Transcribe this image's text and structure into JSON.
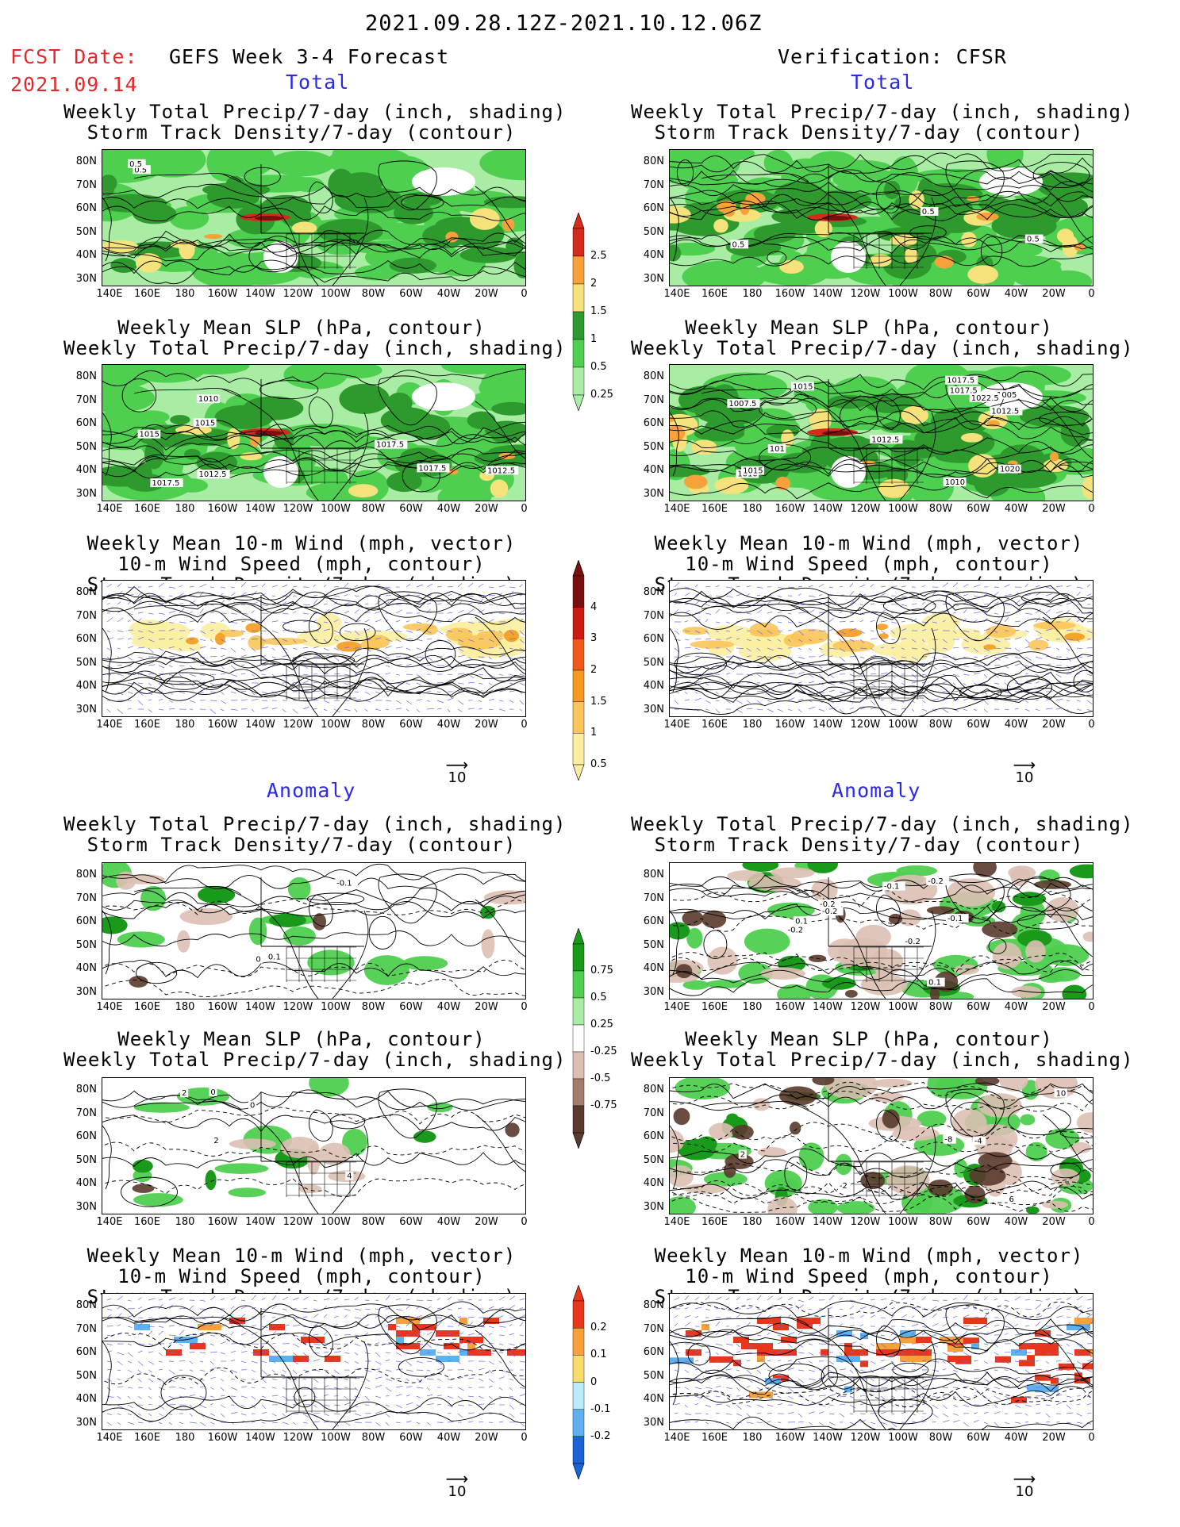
{
  "header": {
    "date_range": "2021.09.28.12Z-2021.10.12.06Z",
    "fcst_label": "FCST Date:",
    "fcst_date": "2021.09.14",
    "left_title": "GEFS Week 3-4 Forecast",
    "right_title": "Verification: CFSR"
  },
  "sections": {
    "total": "Total",
    "anomaly": "Anomaly"
  },
  "panel_titles": {
    "precip_storm": [
      "Weekly Total Precip/7-day (inch, shading)",
      "Storm Track Density/7-day (contour)"
    ],
    "slp_precip": [
      "Weekly Mean SLP (hPa, contour)",
      "Weekly Total Precip/7-day (inch, shading)"
    ],
    "wind_storm": [
      "Weekly Mean 10-m Wind (mph, vector)",
      "10-m Wind Speed (mph, contour)",
      "Storm Track Density/7-day (shading)"
    ]
  },
  "axes": {
    "lat_labels": [
      "80N",
      "70N",
      "60N",
      "50N",
      "40N",
      "30N"
    ],
    "lon_labels": [
      "140E",
      "160E",
      "180",
      "160W",
      "140W",
      "120W",
      "100W",
      "80W",
      "60W",
      "40W",
      "20W",
      "0"
    ]
  },
  "vector_ref": "10",
  "colorbars": {
    "total_precip": {
      "labels": [
        "2.5",
        "2",
        "1.5",
        "1",
        "0.5",
        "0.25"
      ],
      "colors": [
        "#d42b1a",
        "#f7a13a",
        "#f5e27a",
        "#2e9a2e",
        "#4fcf4f",
        "#a9eca4"
      ]
    },
    "total_storm": {
      "labels": [
        "4",
        "3",
        "2",
        "1.5",
        "1",
        "0.5"
      ],
      "colors": [
        "#7a0f0f",
        "#c91d12",
        "#f05a18",
        "#f59a1e",
        "#f9c55a",
        "#fbeea0"
      ]
    },
    "anom_precip": {
      "labels": [
        "0.75",
        "0.5",
        "0.25",
        "-0.25",
        "-0.5",
        "-0.75"
      ],
      "colors": [
        "#1a9a1a",
        "#4fcf4f",
        "#a9eca4",
        "#ffffff",
        "#dbbfb3",
        "#a47c6c",
        "#5a3a2c"
      ]
    },
    "anom_storm": {
      "labels": [
        "0.2",
        "0.1",
        "0",
        "-0.1",
        "-0.2"
      ],
      "colors": [
        "#e8361c",
        "#f7a13a",
        "#f8dc6a",
        "#b9ecf7",
        "#5fb0ef",
        "#1a63d6"
      ]
    }
  },
  "contour_labels": {
    "fc_total_precip": [
      "0.5",
      "0.5"
    ],
    "vf_total_precip": [
      "0.5",
      "0.5",
      "0.5"
    ],
    "fc_total_slp": [
      "1015",
      "1012.5",
      "1017.5",
      "1015",
      "1010",
      "1012.5",
      "1017.5",
      "1017.5"
    ],
    "vf_total_slp": [
      "1015",
      "1012.5",
      "1010",
      "1007.5",
      "1005",
      "1010",
      "1020",
      "1012.5",
      "1017.5",
      "1022.5",
      "1015",
      "1017.5",
      "101"
    ],
    "fc_anom_precip": [
      "0",
      "0.1",
      "-0.1"
    ],
    "vf_anom_precip": [
      "-0.1",
      "-0.2",
      "-0.2",
      "0.1",
      "-0.2",
      "0.1",
      "-0.2",
      "-0.1",
      "-0.2"
    ],
    "fc_anom_slp": [
      "4",
      "2",
      "2",
      "0",
      "0"
    ],
    "vf_anom_slp": [
      "-8",
      "-4",
      "2",
      "-2",
      "6",
      "10"
    ]
  }
}
